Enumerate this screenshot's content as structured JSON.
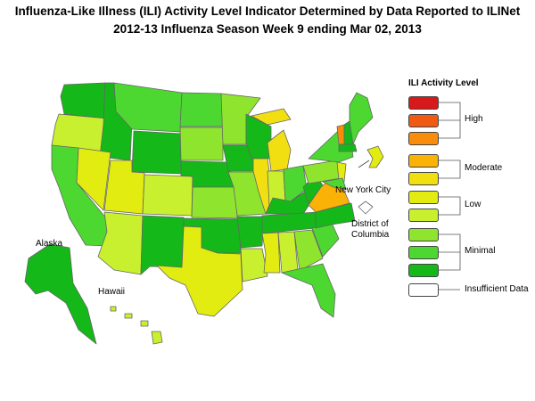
{
  "title": {
    "line1": "Influenza-Like Illness (ILI) Activity Level Indicator Determined by Data Reported to ILINet",
    "line2": "2012-13  Influenza Season Week  9 ending Mar 02, 2013"
  },
  "map_labels": {
    "alaska": "Alaska",
    "hawaii": "Hawaii",
    "nyc": "New York City",
    "dc_line1": "District of",
    "dc_line2": "Columbia"
  },
  "legend": {
    "title": "ILI Activity Level",
    "levels": [
      {
        "level": 10,
        "color": "#d7191c"
      },
      {
        "level": 9,
        "color": "#f05a12"
      },
      {
        "level": 8,
        "color": "#fa8c0c"
      },
      {
        "level": 7,
        "color": "#fbb206"
      },
      {
        "level": 6,
        "color": "#f2df11"
      },
      {
        "level": 5,
        "color": "#e2ec10"
      },
      {
        "level": 4,
        "color": "#c8f02e"
      },
      {
        "level": 3,
        "color": "#8fe42e"
      },
      {
        "level": 2,
        "color": "#4cd831"
      },
      {
        "level": 1,
        "color": "#14b818"
      },
      {
        "level": 0,
        "color": "#ffffff"
      }
    ],
    "groups": {
      "high": "High",
      "moderate": "Moderate",
      "low": "Low",
      "minimal": "Minimal",
      "insufficient": "Insufficient Data"
    }
  }
}
